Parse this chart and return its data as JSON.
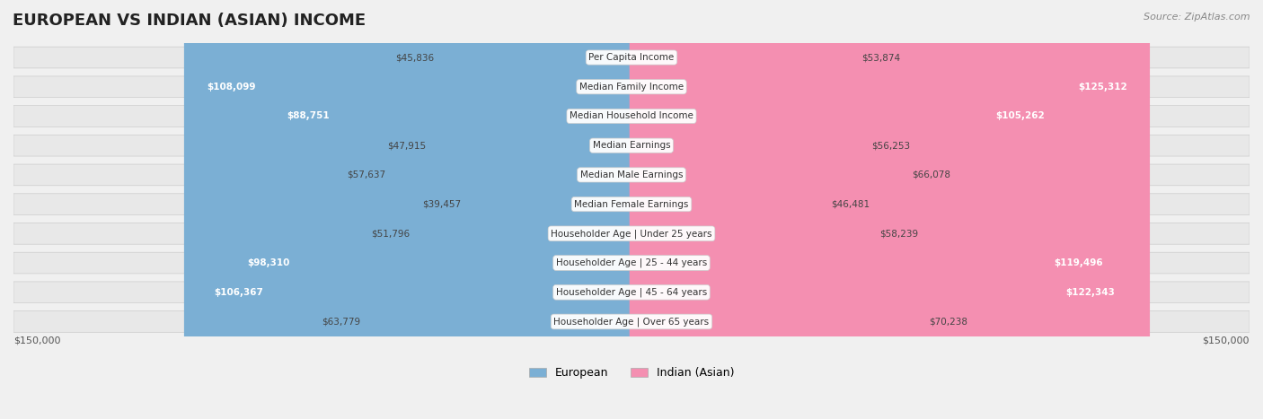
{
  "title": "EUROPEAN VS INDIAN (ASIAN) INCOME",
  "source": "Source: ZipAtlas.com",
  "categories": [
    "Per Capita Income",
    "Median Family Income",
    "Median Household Income",
    "Median Earnings",
    "Median Male Earnings",
    "Median Female Earnings",
    "Householder Age | Under 25 years",
    "Householder Age | 25 - 44 years",
    "Householder Age | 45 - 64 years",
    "Householder Age | Over 65 years"
  ],
  "european_values": [
    45836,
    108099,
    88751,
    47915,
    57637,
    39457,
    51796,
    98310,
    106367,
    63779
  ],
  "indian_values": [
    53874,
    125312,
    105262,
    56253,
    66078,
    46481,
    58239,
    119496,
    122343,
    70238
  ],
  "european_color": "#7bafd4",
  "indian_color": "#f48fb1",
  "highlight_european_indices": [
    1,
    2,
    7,
    8
  ],
  "highlight_indian_indices": [
    1,
    2,
    7,
    8
  ],
  "max_value": 150000,
  "bg_color": "#f5f5f5",
  "row_bg": "#ececec",
  "label_bg": "#ffffff",
  "legend_european": "European",
  "legend_indian": "Indian (Asian)",
  "axis_label_left": "$150,000",
  "axis_label_right": "$150,000"
}
